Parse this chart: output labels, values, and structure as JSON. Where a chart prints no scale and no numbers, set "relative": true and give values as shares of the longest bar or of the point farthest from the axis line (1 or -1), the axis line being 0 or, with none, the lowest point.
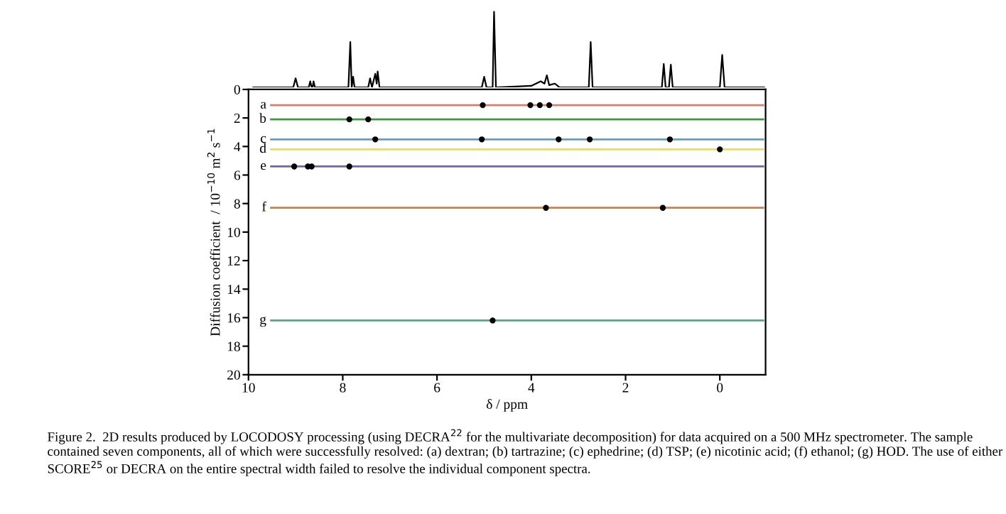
{
  "chart_data": [
    {
      "type": "line",
      "relative": true,
      "tick_labels": false,
      "xlim": [
        10,
        -0.97
      ],
      "series": [
        {
          "color": "#000000",
          "x": [
            9.9,
            9.05,
            9.0,
            8.95,
            8.72,
            8.69,
            8.66,
            8.64,
            8.62,
            8.59,
            7.88,
            7.84,
            7.81,
            7.78,
            7.75,
            7.46,
            7.42,
            7.38,
            7.31,
            7.28,
            7.26,
            7.22,
            5.05,
            5.0,
            4.95,
            4.82,
            4.79,
            4.75,
            4.0,
            3.8,
            3.72,
            3.67,
            3.62,
            3.5,
            3.4,
            2.78,
            2.74,
            2.7,
            1.23,
            1.19,
            1.15,
            1.08,
            1.04,
            1.0,
            0.0,
            -0.05,
            -0.1,
            -0.94
          ],
          "values": [
            0,
            0,
            0.12,
            0,
            0,
            0.08,
            0,
            0,
            0.08,
            0,
            0,
            0.6,
            0,
            0.14,
            0,
            0,
            0.12,
            0,
            0.18,
            0.05,
            0.21,
            0,
            0,
            0.14,
            0,
            0,
            1,
            0,
            0.02,
            0.08,
            0.05,
            0.16,
            0.03,
            0.05,
            0,
            0,
            0.6,
            0,
            0,
            0.31,
            0,
            0,
            0.3,
            0,
            0,
            0.43,
            0,
            0
          ]
        }
      ]
    },
    {
      "type": "line",
      "xlabel": "δ / ppm",
      "ylabel": "Diffusion coefficient  / 10$^{−10}$ m$^{2}$ s$^{−1}$",
      "xlim": [
        10,
        -0.97
      ],
      "xticks": [
        10,
        8,
        6,
        4,
        2,
        0
      ],
      "ylim": [
        20,
        0
      ],
      "yticks": [
        0,
        2,
        4,
        6,
        8,
        10,
        12,
        14,
        16,
        18,
        20
      ],
      "grid": false,
      "annotations": [
        "Figure 2.  2D results produced by LOCODOSY processing (using DECRA$^{22}$ for the multivariate decomposition) for data acquired on a 500 MHz spectrometer. The sample contained seven components, all of which were successfully resolved: (a) dextran; (b) tartrazine; (c) ephedrine; (d) TSP; (e) nicotinic acid; (f) ethanol; (g) HOD. The use of either SCORE$^{25}$ or DECRA on the entire spectral width failed to resolve the individual component spectra."
      ],
      "series": [
        {
          "name": "a",
          "color": "#e07b6a",
          "x": [
            9.52,
            -0.92
          ],
          "values": [
            1.1,
            1.1
          ]
        },
        {
          "name": "b",
          "color": "#3a9a3a",
          "x": [
            9.52,
            -0.92
          ],
          "values": [
            2.1,
            2.1
          ]
        },
        {
          "name": "c",
          "color": "#5aa0d0",
          "x": [
            9.52,
            -0.92
          ],
          "values": [
            3.5,
            3.5
          ]
        },
        {
          "name": "d",
          "color": "#f0e040",
          "x": [
            9.52,
            -0.92
          ],
          "values": [
            4.2,
            4.2
          ]
        },
        {
          "name": "e",
          "color": "#6868b0",
          "x": [
            9.52,
            -0.92
          ],
          "values": [
            5.4,
            5.4
          ]
        },
        {
          "name": "f",
          "color": "#e07a30",
          "x": [
            9.52,
            -0.92
          ],
          "values": [
            8.3,
            8.3
          ]
        },
        {
          "name": "g",
          "color": "#6a9a8a",
          "x": [
            9.52,
            -0.92
          ],
          "values": [
            16.2,
            16.2
          ]
        },
        {
          "type": "scatter",
          "color": "#000000",
          "marker": "circle",
          "x": [
            5.03,
            4.02,
            3.82,
            3.62,
            7.86,
            7.46,
            7.31,
            5.05,
            3.42,
            2.76,
            1.06,
            0.0,
            9.03,
            8.74,
            8.66,
            7.86,
            3.69,
            1.21,
            4.82
          ],
          "values": [
            1.1,
            1.1,
            1.1,
            1.1,
            2.1,
            2.1,
            3.5,
            3.5,
            3.5,
            3.5,
            3.5,
            4.2,
            5.4,
            5.4,
            5.4,
            5.4,
            8.3,
            8.3,
            16.2
          ]
        }
      ]
    }
  ]
}
